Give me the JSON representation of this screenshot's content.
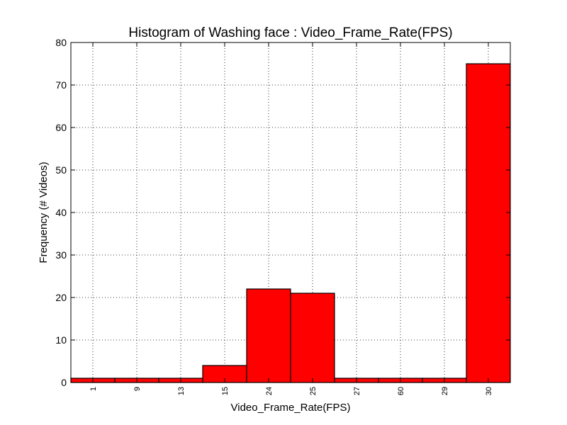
{
  "chart_data": {
    "type": "bar",
    "title": "Histogram of Washing face : Video_Frame_Rate(FPS)",
    "xlabel": "Video_Frame_Rate(FPS)",
    "ylabel": "Frequency (# Videos)",
    "categories": [
      "1",
      "9",
      "13",
      "15",
      "24",
      "25",
      "27",
      "60",
      "29",
      "30"
    ],
    "values": [
      1,
      1,
      1,
      4,
      22,
      21,
      1,
      1,
      1,
      75
    ],
    "ylim": [
      0,
      80
    ],
    "yticks": [
      0,
      10,
      20,
      30,
      40,
      50,
      60,
      70,
      80
    ],
    "grid": true,
    "bar_color": "#ff0000",
    "edge_color": "#000000"
  }
}
